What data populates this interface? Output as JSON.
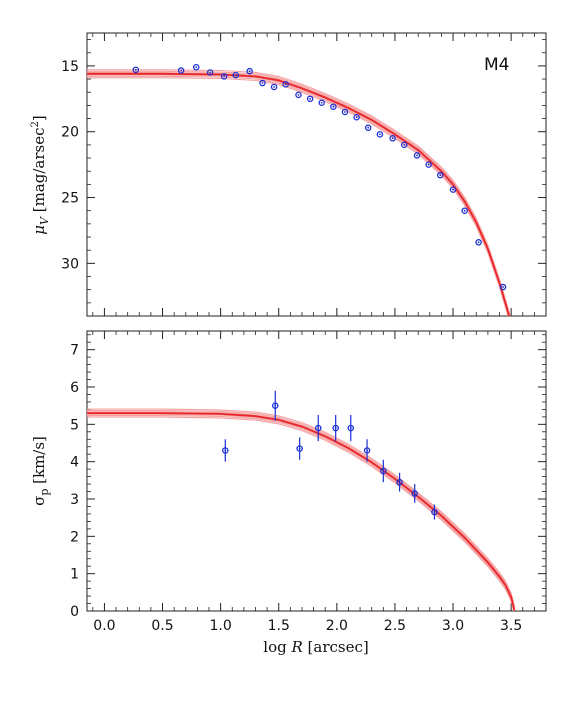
{
  "chart_data": [
    {
      "type": "line",
      "panel_label": "M4",
      "xlabel": "",
      "ylabel": "",
      "xlim": [
        -0.15,
        3.8
      ],
      "ylim": [
        34,
        12.5
      ],
      "y_inverted": true,
      "xticks": [
        0.0,
        0.5,
        1.0,
        1.5,
        2.0,
        2.5,
        3.0,
        3.5
      ],
      "yticks": [
        15,
        20,
        25,
        30
      ],
      "ytick_labels": [
        "15",
        "20",
        "25",
        "30"
      ],
      "colors": {
        "model": "#e8262a",
        "model_band": "#f4a0a0",
        "data": "#1a2fd6"
      },
      "series": [
        {
          "kind": "model",
          "x": [
            -0.15,
            0.5,
            1.0,
            1.3,
            1.5,
            1.7,
            1.9,
            2.1,
            2.3,
            2.5,
            2.7,
            2.9,
            3.0,
            3.1,
            3.2,
            3.3,
            3.4,
            3.45,
            3.5
          ],
          "y": [
            15.6,
            15.6,
            15.65,
            15.8,
            16.1,
            16.7,
            17.4,
            18.2,
            19.1,
            20.2,
            21.4,
            23.0,
            24.0,
            25.3,
            26.9,
            28.9,
            31.5,
            33.0,
            34.5
          ]
        },
        {
          "kind": "data",
          "x": [
            0.27,
            0.66,
            0.79,
            0.91,
            1.03,
            1.13,
            1.25,
            1.36,
            1.46,
            1.56,
            1.67,
            1.77,
            1.87,
            1.97,
            2.07,
            2.17,
            2.27,
            2.37,
            2.48,
            2.58,
            2.69,
            2.79,
            2.89,
            3.0,
            3.1,
            3.22,
            3.43
          ],
          "y": [
            15.3,
            15.35,
            15.1,
            15.5,
            15.8,
            15.7,
            15.4,
            16.3,
            16.6,
            16.4,
            17.2,
            17.5,
            17.8,
            18.1,
            18.5,
            18.9,
            19.7,
            20.2,
            20.5,
            21.0,
            21.8,
            22.5,
            23.3,
            24.4,
            26.0,
            28.4,
            31.8
          ]
        }
      ]
    },
    {
      "type": "line",
      "xlabel": "",
      "ylabel": "",
      "xlim": [
        -0.15,
        3.8
      ],
      "ylim": [
        0,
        7.5
      ],
      "xticks": [
        0.0,
        0.5,
        1.0,
        1.5,
        2.0,
        2.5,
        3.0,
        3.5
      ],
      "xtick_labels": [
        "0.0",
        "0.5",
        "1.0",
        "1.5",
        "2.0",
        "2.5",
        "3.0",
        "3.5"
      ],
      "yticks": [
        0,
        1,
        2,
        3,
        4,
        5,
        6,
        7
      ],
      "ytick_labels": [
        "0",
        "1",
        "2",
        "3",
        "4",
        "5",
        "6",
        "7"
      ],
      "colors": {
        "model": "#e8262a",
        "model_band": "#f4a0a0",
        "data": "#1a2fd6"
      },
      "series": [
        {
          "kind": "model",
          "x": [
            -0.15,
            0.5,
            1.0,
            1.3,
            1.5,
            1.7,
            1.9,
            2.1,
            2.3,
            2.5,
            2.7,
            2.9,
            3.1,
            3.3,
            3.4,
            3.45,
            3.5,
            3.53
          ],
          "y": [
            5.3,
            5.3,
            5.28,
            5.22,
            5.12,
            4.94,
            4.68,
            4.36,
            3.98,
            3.54,
            3.06,
            2.55,
            1.96,
            1.3,
            0.92,
            0.7,
            0.38,
            0.0
          ]
        },
        {
          "kind": "data",
          "x": [
            1.04,
            1.47,
            1.68,
            1.84,
            1.99,
            2.12,
            2.26,
            2.4,
            2.54,
            2.67,
            2.84
          ],
          "y": [
            4.3,
            5.5,
            4.35,
            4.9,
            4.9,
            4.9,
            4.3,
            3.75,
            3.45,
            3.15,
            2.65
          ],
          "err": [
            0.3,
            0.4,
            0.3,
            0.35,
            0.35,
            0.35,
            0.3,
            0.3,
            0.25,
            0.25,
            0.2
          ]
        }
      ]
    }
  ],
  "axes": {
    "xlabel_text": "log ",
    "xlabel_var": "R",
    "xlabel_unit": " [arcsec]",
    "top_ylabel_sym": "μ",
    "top_ylabel_sub": "V",
    "top_ylabel_unit": " [mag/arsec",
    "top_ylabel_exp": "2",
    "top_ylabel_close": "]",
    "bottom_ylabel_sym": "σ",
    "bottom_ylabel_sub": "p",
    "bottom_ylabel_unit": " [km/s]"
  }
}
